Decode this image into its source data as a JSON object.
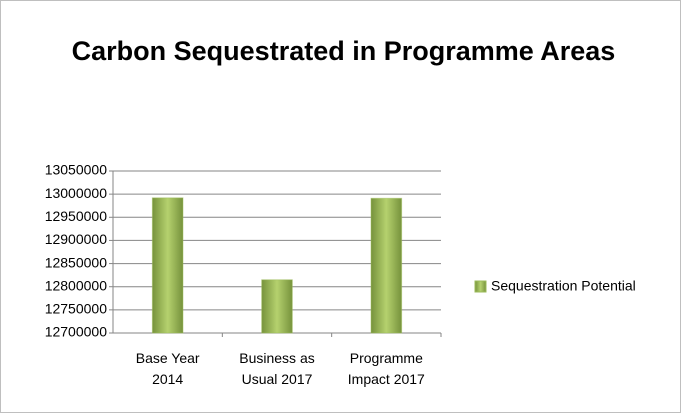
{
  "chart_data": {
    "type": "bar",
    "title": "Carbon Sequestrated in Programme Areas",
    "categories": [
      "Base Year 2014",
      "Business as Usual 2017",
      "Programme Impact 2017"
    ],
    "series": [
      {
        "name": "Sequestration Potential",
        "color": "#9bbb59",
        "values": [
          12992000,
          12815000,
          12991000
        ]
      }
    ],
    "ylim": [
      12700000,
      13050000
    ],
    "yticks": [
      12700000,
      12750000,
      12800000,
      12850000,
      12900000,
      12950000,
      13000000,
      13050000
    ],
    "grid": true,
    "legend": "right"
  }
}
